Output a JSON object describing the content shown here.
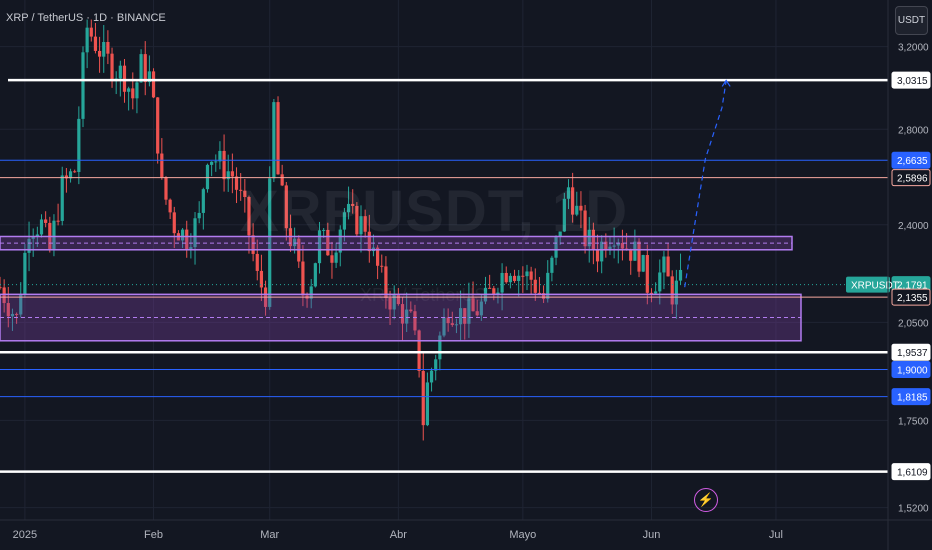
{
  "header": {
    "symbol_title": "XRP / TetherUS · 1D · BINANCE",
    "currency": "USDT"
  },
  "watermark": {
    "main": "XRPUSDT, 1D",
    "sub": "XRP / TetherUS"
  },
  "alert_icon": "lightning-icon",
  "colors": {
    "background": "#131722",
    "up": "#26a69a",
    "down": "#ef5350",
    "zone_fill": "#7b3fa0",
    "zone_border": "#b27cf0",
    "blue_line": "#2962ff",
    "salmon_line": "#f7a9a0",
    "white_line": "#ffffff",
    "projection": "#2962ff"
  },
  "chart_data": {
    "type": "candlestick",
    "symbol": "XRPUSDT",
    "timeframe": "1D",
    "y_axis": {
      "scale": "log",
      "range": [
        1.49,
        3.45
      ],
      "ticks": [
        "3,2000",
        "2,8000",
        "2,4000",
        "2,0500",
        "1,7500",
        "1,5200"
      ]
    },
    "x_axis": {
      "start": "2024-12-26",
      "end": "2025-07-28",
      "ticks": [
        {
          "label": "2025",
          "date": "2025-01-01"
        },
        {
          "label": "Feb",
          "date": "2025-02-01"
        },
        {
          "label": "Mar",
          "date": "2025-03-01"
        },
        {
          "label": "Abr",
          "date": "2025-04-01"
        },
        {
          "label": "Mayo",
          "date": "2025-05-01"
        },
        {
          "label": "Jun",
          "date": "2025-06-01"
        },
        {
          "label": "Jul",
          "date": "2025-07-01"
        }
      ]
    },
    "close_path": [
      [
        "2024-12-26",
        2.17
      ],
      [
        "2024-12-30",
        2.06
      ],
      [
        "2025-01-02",
        2.4
      ],
      [
        "2025-01-05",
        2.4
      ],
      [
        "2025-01-07",
        2.3
      ],
      [
        "2025-01-10",
        2.55
      ],
      [
        "2025-01-13",
        2.62
      ],
      [
        "2025-01-15",
        3.1
      ],
      [
        "2025-01-16",
        3.3
      ],
      [
        "2025-01-18",
        3.22
      ],
      [
        "2025-01-20",
        3.15
      ],
      [
        "2025-01-22",
        3.1
      ],
      [
        "2025-01-25",
        3.05
      ],
      [
        "2025-01-27",
        2.95
      ],
      [
        "2025-01-29",
        3.1
      ],
      [
        "2025-01-31",
        3.05
      ],
      [
        "2025-02-02",
        2.75
      ],
      [
        "2025-02-03",
        2.55
      ],
      [
        "2025-02-06",
        2.4
      ],
      [
        "2025-02-09",
        2.35
      ],
      [
        "2025-02-12",
        2.42
      ],
      [
        "2025-02-14",
        2.7
      ],
      [
        "2025-02-17",
        2.65
      ],
      [
        "2025-02-20",
        2.6
      ],
      [
        "2025-02-23",
        2.45
      ],
      [
        "2025-02-26",
        2.2
      ],
      [
        "2025-02-28",
        2.15
      ],
      [
        "2025-03-02",
        2.9
      ],
      [
        "2025-03-03",
        2.6
      ],
      [
        "2025-03-05",
        2.4
      ],
      [
        "2025-03-07",
        2.3
      ],
      [
        "2025-03-09",
        2.15
      ],
      [
        "2025-03-11",
        2.2
      ],
      [
        "2025-03-13",
        2.35
      ],
      [
        "2025-03-16",
        2.3
      ],
      [
        "2025-03-19",
        2.45
      ],
      [
        "2025-03-21",
        2.42
      ],
      [
        "2025-03-24",
        2.4
      ],
      [
        "2025-03-26",
        2.28
      ],
      [
        "2025-03-29",
        2.15
      ],
      [
        "2025-04-01",
        2.1
      ],
      [
        "2025-04-04",
        2.05
      ],
      [
        "2025-04-06",
        1.92
      ],
      [
        "2025-04-07",
        1.75
      ],
      [
        "2025-04-08",
        1.85
      ],
      [
        "2025-04-10",
        1.95
      ],
      [
        "2025-04-13",
        2.1
      ],
      [
        "2025-04-16",
        2.08
      ],
      [
        "2025-04-19",
        2.08
      ],
      [
        "2025-04-22",
        2.12
      ],
      [
        "2025-04-25",
        2.2
      ],
      [
        "2025-04-28",
        2.25
      ],
      [
        "2025-04-30",
        2.22
      ],
      [
        "2025-05-03",
        2.2
      ],
      [
        "2025-05-06",
        2.13
      ],
      [
        "2025-05-08",
        2.25
      ],
      [
        "2025-05-10",
        2.4
      ],
      [
        "2025-05-12",
        2.55
      ],
      [
        "2025-05-14",
        2.45
      ],
      [
        "2025-05-16",
        2.35
      ],
      [
        "2025-05-19",
        2.3
      ],
      [
        "2025-05-21",
        2.35
      ],
      [
        "2025-05-23",
        2.38
      ],
      [
        "2025-05-26",
        2.32
      ],
      [
        "2025-05-29",
        2.28
      ],
      [
        "2025-05-31",
        2.18
      ],
      [
        "2025-06-02",
        2.2
      ],
      [
        "2025-06-04",
        2.23
      ],
      [
        "2025-06-06",
        2.15
      ],
      [
        "2025-06-08",
        2.18
      ]
    ],
    "zones": [
      {
        "top": 2.355,
        "bottom": 2.305
      },
      {
        "top": 2.145,
        "bottom": 1.99
      }
    ],
    "levels": [
      {
        "value": 3.0315,
        "label": "3,0315",
        "style": "white"
      },
      {
        "value": 2.6635,
        "label": "2,6635",
        "style": "blue"
      },
      {
        "value": 2.5896,
        "label": "2,5896",
        "style": "salmon"
      },
      {
        "value": 2.1791,
        "label": "2,1791",
        "style": "price"
      },
      {
        "value": 2.1355,
        "label": "2,1355",
        "style": "salmon"
      },
      {
        "value": 1.9537,
        "label": "1,9537",
        "style": "white"
      },
      {
        "value": 1.9,
        "label": "1,9000",
        "style": "blue"
      },
      {
        "value": 1.8185,
        "label": "1,8185",
        "style": "blue"
      },
      {
        "value": 1.6109,
        "label": "1,6109",
        "style": "white"
      }
    ],
    "current_price": {
      "symbol": "XRPUSDT",
      "value": 2.1791
    },
    "projection": [
      [
        "2025-06-09",
        2.17
      ],
      [
        "2025-06-11",
        2.36
      ],
      [
        "2025-06-14",
        2.67
      ],
      [
        "2025-06-18",
        2.9
      ],
      [
        "2025-06-19",
        3.03
      ]
    ]
  }
}
